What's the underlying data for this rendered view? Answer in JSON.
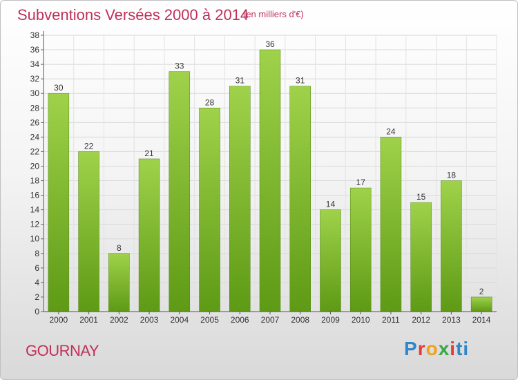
{
  "header": {
    "title": "Subventions Versées 2000 à 2014",
    "subtitle": "(en milliers d'€)"
  },
  "footer": {
    "commune": "GOURNAY",
    "logo": [
      "P",
      "r",
      "o",
      "x",
      "i",
      "t",
      "i"
    ]
  },
  "colors": {
    "title": "#c0305a",
    "bar_top": "#9fd24a",
    "bar_bottom": "#5e9a15"
  },
  "chart_data": {
    "type": "bar",
    "title": "Subventions Versées 2000 à 2014",
    "subtitle": "(en milliers d'€)",
    "categories": [
      "2000",
      "2001",
      "2002",
      "2003",
      "2004",
      "2005",
      "2006",
      "2007",
      "2008",
      "2009",
      "2010",
      "2011",
      "2012",
      "2013",
      "2014"
    ],
    "values": [
      30,
      22,
      8,
      21,
      33,
      28,
      31,
      36,
      31,
      14,
      17,
      24,
      15,
      18,
      2
    ],
    "ylim": [
      0,
      38
    ],
    "yticks": [
      0,
      2,
      4,
      6,
      8,
      10,
      12,
      14,
      16,
      18,
      20,
      22,
      24,
      26,
      28,
      30,
      32,
      34,
      36,
      38
    ],
    "grid": true,
    "data_labels": true
  }
}
